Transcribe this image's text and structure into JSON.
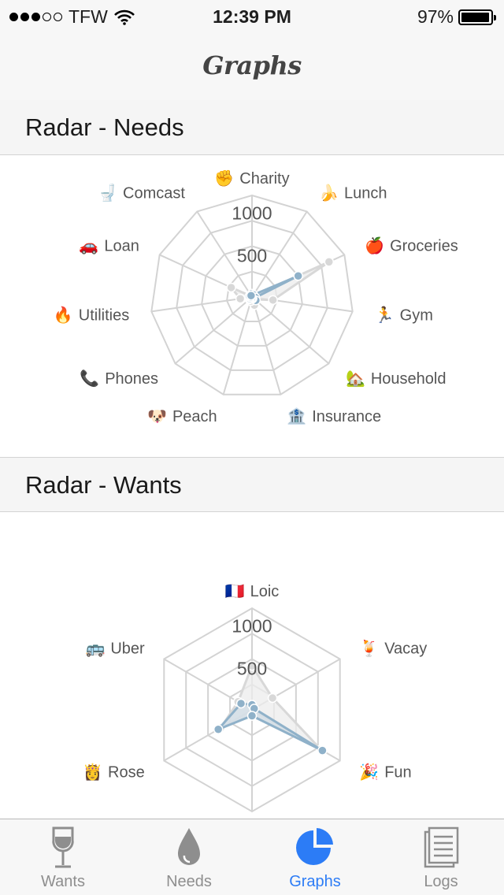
{
  "status_bar": {
    "carrier": "TFW",
    "time": "12:39 PM",
    "battery": "97%",
    "battery_level": 0.97
  },
  "nav": {
    "title": "Graphs"
  },
  "sections": [
    {
      "title": "Radar - Needs"
    },
    {
      "title": "Radar - Wants"
    }
  ],
  "chart_data": [
    {
      "type": "radar",
      "title": "Radar - Needs",
      "categories": [
        {
          "icon": "✊",
          "label": "Charity"
        },
        {
          "icon": "🍌",
          "label": "Lunch"
        },
        {
          "icon": "🍎",
          "label": "Groceries"
        },
        {
          "icon": "🏃",
          "label": "Gym"
        },
        {
          "icon": "🏡",
          "label": "Household"
        },
        {
          "icon": "🏦",
          "label": "Insurance"
        },
        {
          "icon": "🐶",
          "label": "Peach"
        },
        {
          "icon": "📞",
          "label": "Phones"
        },
        {
          "icon": "🔥",
          "label": "Utilities"
        },
        {
          "icon": "🚗",
          "label": "Loan"
        },
        {
          "icon": "🚽",
          "label": "Comcast"
        }
      ],
      "rlim": [
        0,
        1200
      ],
      "tick_labels": [
        "500",
        "1000"
      ],
      "grid": true,
      "series": [
        {
          "color": "#8fb1c9",
          "fill": "#cfdbe4",
          "values": [
            40,
            30,
            600,
            40,
            60,
            20,
            20,
            30,
            20,
            30,
            20
          ]
        },
        {
          "color": "#d8d8d8",
          "fill": "#ececec",
          "values": [
            15,
            10,
            1000,
            250,
            40,
            100,
            50,
            40,
            140,
            270,
            10
          ]
        }
      ]
    },
    {
      "type": "radar",
      "title": "Radar - Wants",
      "categories": [
        {
          "icon": "🇫🇷",
          "label": "Loic"
        },
        {
          "icon": "🍹",
          "label": "Vacay"
        },
        {
          "icon": "🎉",
          "label": "Fun"
        },
        {
          "icon": "",
          "label": ""
        },
        {
          "icon": "👸",
          "label": "Rose"
        },
        {
          "icon": "🚌",
          "label": "Uber"
        }
      ],
      "rlim": [
        0,
        1200
      ],
      "tick_labels": [
        "500",
        "1000"
      ],
      "grid": true,
      "series": [
        {
          "color": "#8fb1c9",
          "fill": "#cfdbe4",
          "values": [
            60,
            30,
            960,
            70,
            460,
            150
          ]
        },
        {
          "color": "#d8d8d8",
          "fill": "#ececec",
          "values": [
            520,
            280,
            940,
            70,
            430,
            190
          ]
        }
      ]
    }
  ],
  "tabs": [
    {
      "label": "Wants",
      "icon": "wine-glass-icon",
      "active": false
    },
    {
      "label": "Needs",
      "icon": "water-drop-icon",
      "active": false
    },
    {
      "label": "Graphs",
      "icon": "pie-chart-icon",
      "active": true
    },
    {
      "label": "Logs",
      "icon": "document-icon",
      "active": false
    }
  ],
  "colors": {
    "accent": "#2c7cf6",
    "tab_inactive": "#8e8e8e",
    "grid": "#d3d3d3"
  }
}
